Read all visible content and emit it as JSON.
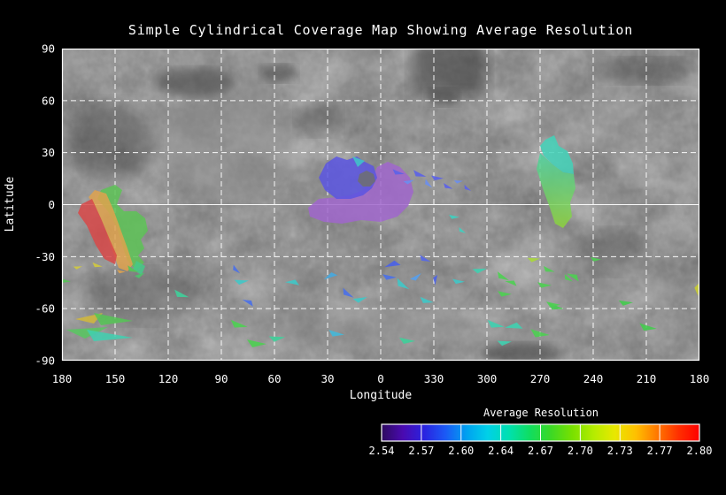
{
  "chart_data": {
    "type": "heatmap",
    "title": "Simple Cylindrical Coverage Map Showing Average Resolution",
    "xlabel": "Longitude",
    "ylabel": "Latitude",
    "x_tick_labels": [
      "180",
      "150",
      "120",
      "90",
      "60",
      "30",
      "0",
      "330",
      "300",
      "270",
      "240",
      "210",
      "180"
    ],
    "y_tick_labels": [
      "90",
      "60",
      "30",
      "0",
      "-30",
      "-60",
      "-90"
    ],
    "x_tick_spacing_deg": 30,
    "y_tick_spacing_deg": 30,
    "grid": "white dashed 30-degree graticule, equator drawn solid, solid white frame",
    "background": "grayscale planetary surface mosaic",
    "colorbar": {
      "label": "Average Resolution",
      "tick_labels": [
        "2.54",
        "2.57",
        "2.60",
        "2.64",
        "2.67",
        "2.70",
        "2.73",
        "2.77",
        "2.80"
      ],
      "min": 2.54,
      "max": 2.8,
      "segments": 8,
      "gradient": [
        "#2d0a5e",
        "#4a0ab0",
        "#2a22e0",
        "#1b59f5",
        "#00a0f0",
        "#00d0e8",
        "#00e0b0",
        "#10dd60",
        "#3cd825",
        "#78e000",
        "#b4ec00",
        "#e8e800",
        "#ffc000",
        "#ff7800",
        "#ff3000",
        "#ff0000"
      ]
    },
    "coverage_regions": [
      {
        "name": "western swath",
        "approx_lon_deg": 153,
        "approx_lat_deg": -12,
        "colors": "red/orange/green = resolution ~2.70-2.80"
      },
      {
        "name": "central region",
        "approx_lon_deg": 10,
        "approx_lat_deg": 3,
        "colors": "purple/blue = resolution ~2.54-2.60"
      },
      {
        "name": "eastern swath",
        "approx_lon_deg": 265,
        "approx_lat_deg": 10,
        "colors": "cyan to yellow-green = resolution ~2.62-2.72"
      },
      {
        "name": "scattered southern footprints",
        "lat_range_deg": [
          -80,
          -30
        ],
        "colors": "mixed blue/cyan/green/yellow = resolution ~2.57-2.74"
      }
    ],
    "units": "patch and scatter coordinates are plot-area pixels, plot area 720x353 px = 360deg x 180deg",
    "coverage_patches": [
      {
        "fill": "#5dc356",
        "pts": [
          [
            44,
            160
          ],
          [
            60,
            154
          ],
          [
            68,
            160
          ],
          [
            62,
            176
          ],
          [
            70,
            184
          ],
          [
            84,
            184
          ],
          [
            94,
            192
          ],
          [
            97,
            206
          ],
          [
            89,
            216
          ],
          [
            93,
            226
          ],
          [
            86,
            234
          ],
          [
            93,
            242
          ],
          [
            84,
            251
          ],
          [
            74,
            240
          ],
          [
            68,
            222
          ],
          [
            62,
            202
          ],
          [
            52,
            184
          ],
          [
            40,
            170
          ]
        ]
      },
      {
        "fill": "#45c98a",
        "pts": [
          [
            84,
            240
          ],
          [
            94,
            246
          ],
          [
            90,
            256
          ],
          [
            80,
            250
          ]
        ]
      },
      {
        "fill": "#dfa24e",
        "pts": [
          [
            37,
            160
          ],
          [
            50,
            164
          ],
          [
            58,
            182
          ],
          [
            66,
            204
          ],
          [
            74,
            226
          ],
          [
            80,
            244
          ],
          [
            74,
            252
          ],
          [
            64,
            248
          ],
          [
            56,
            226
          ],
          [
            48,
            202
          ],
          [
            38,
            180
          ],
          [
            30,
            168
          ]
        ]
      },
      {
        "fill": "#d84848",
        "pts": [
          [
            22,
            176
          ],
          [
            34,
            170
          ],
          [
            44,
            192
          ],
          [
            54,
            216
          ],
          [
            62,
            234
          ],
          [
            60,
            244
          ],
          [
            48,
            238
          ],
          [
            38,
            222
          ],
          [
            28,
            200
          ],
          [
            18,
            186
          ]
        ]
      },
      {
        "fill": "#a066cc",
        "pts": [
          [
            278,
            180
          ],
          [
            290,
            170
          ],
          [
            310,
            168
          ],
          [
            326,
            166
          ],
          [
            340,
            160
          ],
          [
            350,
            146
          ],
          [
            356,
            134
          ],
          [
            368,
            128
          ],
          [
            382,
            134
          ],
          [
            393,
            146
          ],
          [
            397,
            162
          ],
          [
            391,
            178
          ],
          [
            379,
            190
          ],
          [
            360,
            196
          ],
          [
            338,
            194
          ],
          [
            316,
            198
          ],
          [
            296,
            196
          ],
          [
            280,
            190
          ]
        ]
      },
      {
        "fill": "#5a55e2",
        "pts": [
          [
            290,
            146
          ],
          [
            298,
            130
          ],
          [
            310,
            122
          ],
          [
            322,
            126
          ],
          [
            333,
            122
          ],
          [
            342,
            128
          ],
          [
            352,
            133
          ],
          [
            356,
            146
          ],
          [
            350,
            158
          ],
          [
            340,
            166
          ],
          [
            326,
            170
          ],
          [
            310,
            170
          ],
          [
            297,
            160
          ]
        ]
      },
      {
        "fill": "#3fc8c8",
        "pts": [
          [
            328,
            122
          ],
          [
            342,
            127
          ],
          [
            334,
            134
          ]
        ]
      },
      {
        "fill": "#6e6e6e",
        "pts": [
          [
            336,
            142
          ],
          [
            344,
            138
          ],
          [
            352,
            142
          ],
          [
            354,
            150
          ],
          [
            348,
            156
          ],
          [
            340,
            156
          ],
          [
            334,
            150
          ]
        ]
      },
      {
        "fill": "#42d2b8",
        "pts": [
          [
            546,
            103
          ],
          [
            556,
            98
          ],
          [
            561,
            110
          ],
          [
            571,
            116
          ],
          [
            577,
            130
          ],
          [
            578,
            142
          ],
          [
            566,
            140
          ],
          [
            554,
            131
          ],
          [
            544,
            121
          ],
          [
            540,
            110
          ]
        ]
      },
      {
        "grad": [
          "#49d0a0",
          "#8ed33c"
        ],
        "pts": [
          [
            540,
            118
          ],
          [
            554,
            131
          ],
          [
            566,
            140
          ],
          [
            578,
            142
          ],
          [
            580,
            158
          ],
          [
            574,
            174
          ],
          [
            576,
            190
          ],
          [
            566,
            203
          ],
          [
            557,
            198
          ],
          [
            551,
            180
          ],
          [
            543,
            158
          ],
          [
            536,
            136
          ]
        ]
      },
      {
        "fill": "#d2b83a",
        "pts": [
          [
            15,
            306
          ],
          [
            46,
            299
          ],
          [
            36,
            311
          ]
        ]
      },
      {
        "fill": "#55c555",
        "pts": [
          [
            36,
            299
          ],
          [
            80,
            308
          ],
          [
            44,
            313
          ]
        ]
      },
      {
        "fill": "#58c860",
        "pts": [
          [
            5,
            318
          ],
          [
            52,
            315
          ],
          [
            26,
            328
          ]
        ]
      },
      {
        "fill": "#3fd0b0",
        "pts": [
          [
            28,
            318
          ],
          [
            80,
            327
          ],
          [
            36,
            331
          ]
        ]
      }
    ],
    "scatter_patches": [
      [
        40,
        245,
        6,
        10,
        "#d2ca3e"
      ],
      [
        18,
        247,
        5,
        -15,
        "#d2ca3e"
      ],
      [
        2,
        262,
        8,
        5,
        "#55c555"
      ],
      [
        67,
        252,
        5,
        0,
        "#dfa24e"
      ],
      [
        80,
        250,
        7,
        20,
        "#55c555"
      ],
      [
        88,
        256,
        6,
        -30,
        "#4cc46c"
      ],
      [
        135,
        278,
        9,
        15,
        "#3fcf9a"
      ],
      [
        197,
        250,
        6,
        40,
        "#4a70e8"
      ],
      [
        203,
        263,
        8,
        -10,
        "#3fc8c8"
      ],
      [
        210,
        287,
        7,
        200,
        "#4a70e8"
      ],
      [
        260,
        265,
        8,
        180,
        "#3fc8c8"
      ],
      [
        303,
        258,
        8,
        150,
        "#45a8e0"
      ],
      [
        323,
        277,
        8,
        30,
        "#4a70e8"
      ],
      [
        337,
        283,
        8,
        -20,
        "#3fc8c8"
      ],
      [
        200,
        312,
        10,
        10,
        "#4ecf52"
      ],
      [
        220,
        333,
        11,
        0,
        "#4ecf52"
      ],
      [
        243,
        327,
        9,
        -10,
        "#3fcf9a"
      ],
      [
        310,
        322,
        9,
        5,
        "#45b8d8"
      ],
      [
        373,
        245,
        9,
        160,
        "#4a62e8"
      ],
      [
        410,
        238,
        7,
        20,
        "#5568e8"
      ],
      [
        370,
        258,
        8,
        0,
        "#4a70e8"
      ],
      [
        385,
        267,
        9,
        30,
        "#3fc8c8"
      ],
      [
        400,
        258,
        7,
        -40,
        "#55a0f0"
      ],
      [
        412,
        285,
        8,
        10,
        "#3fc8c8"
      ],
      [
        422,
        262,
        6,
        90,
        "#4a62e8"
      ],
      [
        448,
        263,
        7,
        0,
        "#3fc8c8"
      ],
      [
        472,
        250,
        8,
        -15,
        "#3fcfb0"
      ],
      [
        498,
        258,
        8,
        25,
        "#4ecf52"
      ],
      [
        507,
        265,
        7,
        190,
        "#4ecf52"
      ],
      [
        500,
        277,
        8,
        0,
        "#4ecf52"
      ],
      [
        533,
        238,
        7,
        -10,
        "#a8d838"
      ],
      [
        550,
        250,
        7,
        15,
        "#4ecf52"
      ],
      [
        545,
        267,
        8,
        0,
        "#4ecf52"
      ],
      [
        577,
        258,
        8,
        200,
        "#4ecf52"
      ],
      [
        558,
        292,
        9,
        10,
        "#44cb4e"
      ],
      [
        603,
        238,
        6,
        0,
        "#4ecf52"
      ],
      [
        637,
        287,
        8,
        -5,
        "#44cb4e"
      ],
      [
        572,
        260,
        6,
        30,
        "#4ecf52"
      ],
      [
        490,
        312,
        10,
        10,
        "#3fd0b0"
      ],
      [
        510,
        315,
        10,
        170,
        "#3fd0b0"
      ],
      [
        540,
        322,
        11,
        5,
        "#4ecf52"
      ],
      [
        555,
        289,
        8,
        0,
        "#4ecf52"
      ],
      [
        500,
        332,
        8,
        -10,
        "#3fd0b0"
      ],
      [
        662,
        315,
        10,
        5,
        "#44cb4e"
      ],
      [
        718,
        273,
        7,
        80,
        "#c8cc30"
      ],
      [
        390,
        330,
        9,
        0,
        "#3fcf9a"
      ],
      [
        443,
        190,
        6,
        0,
        "#3fd0c0"
      ],
      [
        452,
        206,
        5,
        30,
        "#3fd0c0"
      ],
      [
        380,
        140,
        7,
        10,
        "#5b62e8"
      ],
      [
        392,
        150,
        6,
        -20,
        "#6a8ef0"
      ],
      [
        404,
        142,
        8,
        15,
        "#5b62e8"
      ],
      [
        414,
        153,
        6,
        40,
        "#6a8ef0"
      ],
      [
        424,
        146,
        7,
        0,
        "#5b62e8"
      ],
      [
        436,
        156,
        6,
        20,
        "#5b62e8"
      ],
      [
        448,
        150,
        5,
        -10,
        "#6a8ef0"
      ],
      [
        458,
        158,
        5,
        30,
        "#5b62e8"
      ]
    ]
  }
}
